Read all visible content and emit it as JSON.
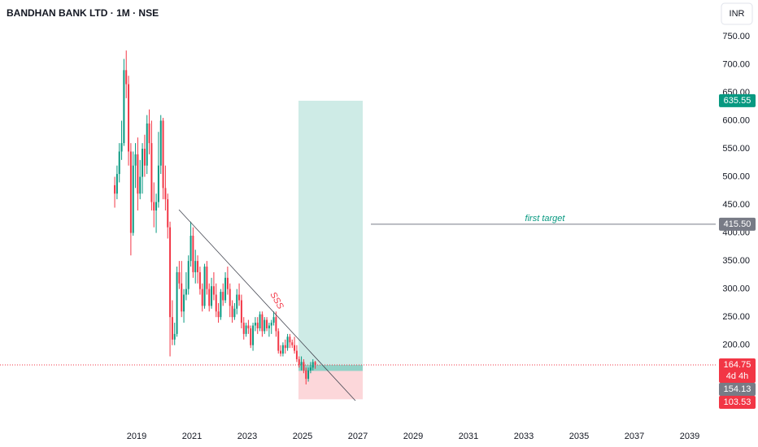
{
  "chart_data": {
    "type": "candlestick",
    "title": "BANDHAN BANK LTD · 1M · NSE",
    "currency": "INR",
    "up_color": "#089981",
    "down_color": "#f23645",
    "x": [
      "2018-03",
      "2018-04",
      "2018-05",
      "2018-06",
      "2018-07",
      "2018-08",
      "2018-09",
      "2018-10",
      "2018-11",
      "2018-12",
      "2019-01",
      "2019-02",
      "2019-03",
      "2019-04",
      "2019-05",
      "2019-06",
      "2019-07",
      "2019-08",
      "2019-09",
      "2019-10",
      "2019-11",
      "2019-12",
      "2020-01",
      "2020-02",
      "2020-03",
      "2020-04",
      "2020-05",
      "2020-06",
      "2020-07",
      "2020-08",
      "2020-09",
      "2020-10",
      "2020-11",
      "2020-12",
      "2021-01",
      "2021-02",
      "2021-03",
      "2021-04",
      "2021-05",
      "2021-06",
      "2021-07",
      "2021-08",
      "2021-09",
      "2021-10",
      "2021-11",
      "2021-12",
      "2022-01",
      "2022-02",
      "2022-03",
      "2022-04",
      "2022-05",
      "2022-06",
      "2022-07",
      "2022-08",
      "2022-09",
      "2022-10",
      "2022-11",
      "2022-12",
      "2023-01",
      "2023-02",
      "2023-03",
      "2023-04",
      "2023-05",
      "2023-06",
      "2023-07",
      "2023-08",
      "2023-09",
      "2023-10",
      "2023-11",
      "2023-12",
      "2024-01",
      "2024-02",
      "2024-03",
      "2024-04",
      "2024-05",
      "2024-06",
      "2024-07",
      "2024-08",
      "2024-09",
      "2024-10",
      "2024-11",
      "2024-12",
      "2025-01",
      "2025-02",
      "2025-03",
      "2025-04",
      "2025-05",
      "2025-06"
    ],
    "open": [
      485,
      470,
      505,
      545,
      560,
      690,
      665,
      545,
      400,
      520,
      540,
      470,
      500,
      550,
      520,
      595,
      560,
      455,
      440,
      455,
      520,
      600,
      480,
      460,
      410,
      250,
      210,
      220,
      330,
      310,
      260,
      290,
      300,
      350,
      395,
      330,
      350,
      330,
      300,
      270,
      340,
      300,
      270,
      305,
      290,
      260,
      250,
      295,
      280,
      320,
      300,
      270,
      250,
      265,
      290,
      280,
      240,
      220,
      235,
      230,
      200,
      235,
      240,
      230,
      255,
      225,
      245,
      230,
      235,
      240,
      250,
      225,
      190,
      185,
      200,
      195,
      215,
      205,
      200,
      190,
      175,
      165,
      170,
      155,
      140,
      155,
      160,
      170
    ],
    "high": [
      500,
      520,
      560,
      600,
      710,
      725,
      680,
      560,
      545,
      560,
      570,
      530,
      560,
      575,
      610,
      620,
      600,
      490,
      470,
      580,
      610,
      605,
      520,
      470,
      420,
      280,
      240,
      340,
      350,
      350,
      300,
      330,
      360,
      420,
      410,
      370,
      360,
      340,
      310,
      345,
      350,
      310,
      320,
      330,
      310,
      275,
      300,
      310,
      330,
      340,
      310,
      280,
      275,
      300,
      310,
      290,
      250,
      240,
      245,
      235,
      240,
      250,
      250,
      260,
      260,
      250,
      250,
      240,
      245,
      260,
      260,
      230,
      200,
      205,
      210,
      220,
      220,
      210,
      215,
      200,
      180,
      180,
      175,
      160,
      160,
      170,
      175,
      172
    ],
    "low": [
      445,
      460,
      490,
      530,
      555,
      640,
      520,
      360,
      395,
      480,
      440,
      460,
      470,
      500,
      505,
      540,
      440,
      410,
      400,
      445,
      505,
      460,
      440,
      390,
      180,
      200,
      200,
      215,
      300,
      250,
      240,
      280,
      290,
      340,
      320,
      310,
      310,
      290,
      260,
      265,
      290,
      260,
      265,
      280,
      250,
      240,
      245,
      270,
      275,
      290,
      250,
      240,
      245,
      255,
      270,
      230,
      210,
      215,
      220,
      195,
      190,
      225,
      220,
      225,
      215,
      220,
      225,
      215,
      220,
      235,
      215,
      185,
      180,
      180,
      185,
      190,
      195,
      195,
      185,
      170,
      160,
      155,
      150,
      130,
      135,
      150,
      155,
      158
    ],
    "close": [
      470,
      505,
      545,
      560,
      690,
      665,
      545,
      400,
      520,
      540,
      470,
      500,
      550,
      520,
      595,
      560,
      455,
      440,
      455,
      520,
      600,
      480,
      460,
      410,
      250,
      210,
      220,
      330,
      310,
      260,
      290,
      300,
      350,
      395,
      330,
      350,
      330,
      300,
      270,
      340,
      300,
      270,
      305,
      290,
      260,
      250,
      295,
      280,
      320,
      300,
      270,
      250,
      265,
      290,
      280,
      240,
      220,
      235,
      230,
      200,
      235,
      240,
      230,
      255,
      225,
      245,
      230,
      235,
      240,
      250,
      225,
      190,
      185,
      200,
      195,
      215,
      205,
      200,
      190,
      175,
      165,
      170,
      155,
      140,
      155,
      160,
      170,
      164.75
    ],
    "xlim": [
      2014.06,
      2039.94
    ],
    "xticks": [
      2019,
      2021,
      2023,
      2025,
      2027,
      2029,
      2031,
      2033,
      2035,
      2037,
      2039
    ],
    "ylim": [
      62,
      815
    ],
    "yticks": [
      {
        "value": 200,
        "label": "200.00"
      },
      {
        "value": 250,
        "label": "250.00"
      },
      {
        "value": 300,
        "label": "300.00"
      },
      {
        "value": 350,
        "label": "350.00"
      },
      {
        "value": 400,
        "label": "400.00"
      },
      {
        "value": 450,
        "label": "450.00"
      },
      {
        "value": 500,
        "label": "500.00"
      },
      {
        "value": 550,
        "label": "550.00"
      },
      {
        "value": 600,
        "label": "600.00"
      },
      {
        "value": 650,
        "label": "650.00"
      },
      {
        "value": 700,
        "label": "700.00"
      },
      {
        "value": 750,
        "label": "750.00"
      }
    ],
    "price_labels": [
      {
        "value": 635.55,
        "color": "#089981"
      },
      {
        "value": 415.5,
        "label": "415.50",
        "color": "#787b86"
      },
      {
        "value": 164.75,
        "color": "#f23645",
        "countdown": "4d 4h"
      },
      {
        "value": 154.13,
        "color": "#787b86"
      },
      {
        "value": 103.53,
        "color": "#f23645"
      }
    ],
    "annotations": [
      {
        "text": "first target",
        "color": "#089981"
      },
      {
        "text": "SSS",
        "color": "#f23645"
      }
    ]
  }
}
